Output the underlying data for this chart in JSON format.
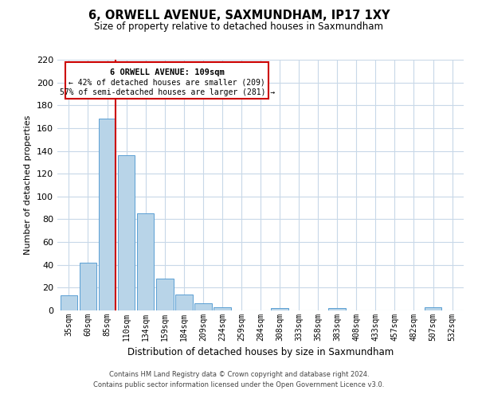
{
  "title": "6, ORWELL AVENUE, SAXMUNDHAM, IP17 1XY",
  "subtitle": "Size of property relative to detached houses in Saxmundham",
  "xlabel": "Distribution of detached houses by size in Saxmundham",
  "ylabel": "Number of detached properties",
  "bar_color": "#b8d4e8",
  "bar_edge_color": "#5a9fd4",
  "background_color": "#ffffff",
  "grid_color": "#c8d8e8",
  "categories": [
    "35sqm",
    "60sqm",
    "85sqm",
    "110sqm",
    "134sqm",
    "159sqm",
    "184sqm",
    "209sqm",
    "234sqm",
    "259sqm",
    "284sqm",
    "308sqm",
    "333sqm",
    "358sqm",
    "383sqm",
    "408sqm",
    "433sqm",
    "457sqm",
    "482sqm",
    "507sqm",
    "532sqm"
  ],
  "values": [
    13,
    42,
    168,
    136,
    85,
    28,
    14,
    6,
    3,
    0,
    0,
    2,
    0,
    0,
    2,
    0,
    0,
    0,
    0,
    3,
    0
  ],
  "ylim": [
    0,
    220
  ],
  "yticks": [
    0,
    20,
    40,
    60,
    80,
    100,
    120,
    140,
    160,
    180,
    200,
    220
  ],
  "vline_color": "#cc0000",
  "annotation_title": "6 ORWELL AVENUE: 109sqm",
  "annotation_line1": "← 42% of detached houses are smaller (209)",
  "annotation_line2": "57% of semi-detached houses are larger (281) →",
  "footer_line1": "Contains HM Land Registry data © Crown copyright and database right 2024.",
  "footer_line2": "Contains public sector information licensed under the Open Government Licence v3.0."
}
